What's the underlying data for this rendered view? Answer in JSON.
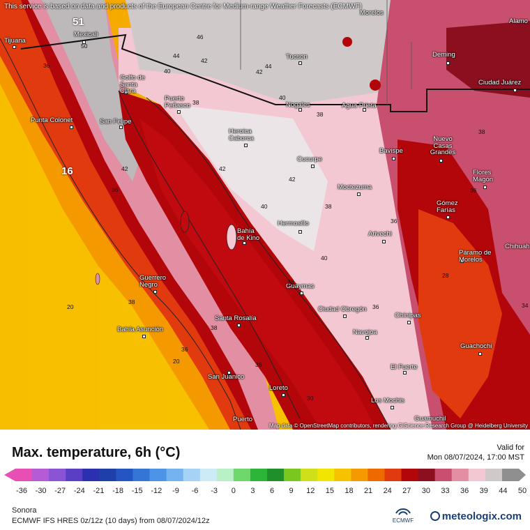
{
  "header": {
    "notice": "This service is based on data and products of the European Centre for Medium-range Weather Forecasts (ECMWF)"
  },
  "map": {
    "attribution": "Map data © OpenStreetMap contributors, rendering GIScience Research Group @ Heidelberg University",
    "cities": [
      "Mexicali",
      "Tijuana",
      "Golfo de Santa Clara",
      "Puerto Peñasco",
      "San Felipe",
      "Punta Colonet",
      "Tucson",
      "Nogales",
      "Agua Prieta",
      "Deming",
      "Ciudad Juárez",
      "Heroica Caborca",
      "Cucurpe",
      "Moctezuma",
      "Bavispe",
      "Nuevo Casas Grandes",
      "Flores Magón",
      "Gómez Farías",
      "Hermosillo",
      "Bahía de Kino",
      "Arivechi",
      "Páramo de Morelos",
      "Chihuahua",
      "Guerrero Negro",
      "Guaymas",
      "Ciudad Obregón",
      "Chínipas",
      "Santa Rosalía",
      "Bahía Asunción",
      "Navojoa",
      "Guachochi",
      "El Fuerte",
      "San Juanico",
      "Loreto",
      "Los Mochis",
      "Puerto",
      "Guamuchil",
      "Alamo",
      "Morelos"
    ],
    "values": [
      "51",
      "50",
      "46",
      "44",
      "42",
      "44",
      "42",
      "40",
      "40",
      "38",
      "38",
      "36",
      "36",
      "42",
      "42",
      "38",
      "40",
      "38",
      "36",
      "28",
      "34",
      "38",
      "38",
      "36",
      "36",
      "20",
      "20",
      "16",
      "38",
      "40",
      "38",
      "36",
      "30",
      "42"
    ]
  },
  "legend": {
    "title": "Max. temperature, 6h (°C)",
    "valid_label": "Valid for",
    "valid_time": "Mon 08/07/2024, 17:00 MST",
    "ticks": [
      "-36",
      "-30",
      "-27",
      "-24",
      "-21",
      "-18",
      "-15",
      "-12",
      "-9",
      "-6",
      "-3",
      "0",
      "3",
      "6",
      "9",
      "12",
      "15",
      "18",
      "21",
      "24",
      "27",
      "30",
      "33",
      "36",
      "39",
      "44",
      "50"
    ],
    "colors": [
      "#e84fb5",
      "#b55bd6",
      "#8a54d4",
      "#5a3fc4",
      "#2b2fb0",
      "#1e3fa8",
      "#2455c2",
      "#3575d6",
      "#4d94e6",
      "#74b3ef",
      "#a5d2f5",
      "#cdebf7",
      "#b9f0c6",
      "#6fd86c",
      "#2db53a",
      "#1f8f2a",
      "#7ac71f",
      "#cfe01a",
      "#f2e600",
      "#f7c200",
      "#f49a00",
      "#ee6a00",
      "#e23a0f",
      "#b3060b",
      "#8b0f1e",
      "#c94f6e",
      "#e38fa3",
      "#f4c8d2",
      "#cfc9ca",
      "#8f8f8f"
    ],
    "region": "Sonora",
    "model": "ECMWF IFS HRES 0z/12z (10 days) from 08/07/2024/12z",
    "ecmwf_logo": "ECMWF",
    "brand": "meteologix.com"
  }
}
